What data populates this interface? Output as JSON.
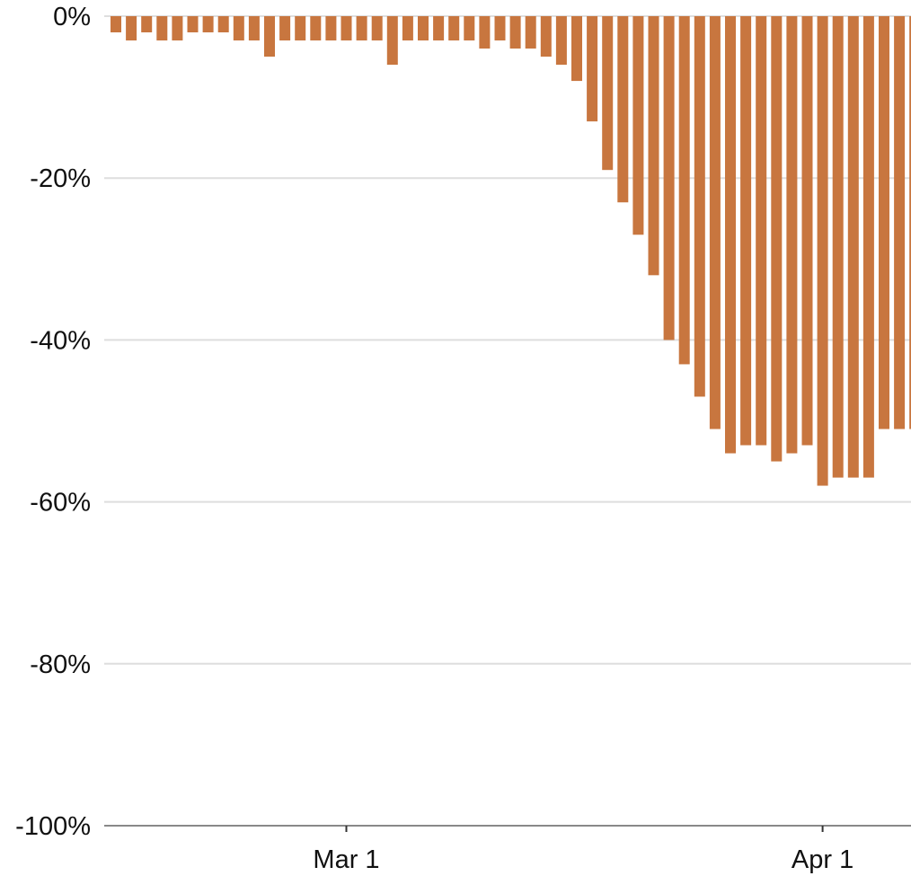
{
  "chart_data": {
    "type": "bar",
    "title": "",
    "xlabel": "",
    "ylabel": "",
    "ylim": [
      -100,
      0
    ],
    "grid": true,
    "legend": "none",
    "bar_color": "#c8763f",
    "grid_color": "#dedede",
    "axis_color": "#888888",
    "x_start": "2020-02-15",
    "categories": [
      "2020-02-15",
      "2020-02-16",
      "2020-02-17",
      "2020-02-18",
      "2020-02-19",
      "2020-02-20",
      "2020-02-21",
      "2020-02-22",
      "2020-02-23",
      "2020-02-24",
      "2020-02-25",
      "2020-02-26",
      "2020-02-27",
      "2020-02-28",
      "2020-02-29",
      "2020-03-01",
      "2020-03-02",
      "2020-03-03",
      "2020-03-04",
      "2020-03-05",
      "2020-03-06",
      "2020-03-07",
      "2020-03-08",
      "2020-03-09",
      "2020-03-10",
      "2020-03-11",
      "2020-03-12",
      "2020-03-13",
      "2020-03-14",
      "2020-03-15",
      "2020-03-16",
      "2020-03-17",
      "2020-03-18",
      "2020-03-19",
      "2020-03-20",
      "2020-03-21",
      "2020-03-22",
      "2020-03-23",
      "2020-03-24",
      "2020-03-25",
      "2020-03-26",
      "2020-03-27",
      "2020-03-28",
      "2020-03-29",
      "2020-03-30",
      "2020-03-31",
      "2020-04-01",
      "2020-04-02",
      "2020-04-03",
      "2020-04-04",
      "2020-04-05",
      "2020-04-06",
      "2020-04-07"
    ],
    "values": [
      -2,
      -3,
      -2,
      -3,
      -3,
      -2,
      -2,
      -2,
      -3,
      -3,
      -5,
      -3,
      -3,
      -3,
      -3,
      -3,
      -3,
      -3,
      -6,
      -3,
      -3,
      -3,
      -3,
      -3,
      -4,
      -3,
      -4,
      -4,
      -5,
      -6,
      -8,
      -13,
      -19,
      -23,
      -27,
      -32,
      -40,
      -43,
      -47,
      -51,
      -54,
      -53,
      -53,
      -55,
      -54,
      -53,
      -58,
      -57,
      -57,
      -57,
      -51,
      -51,
      -51
    ],
    "y_ticks": [
      {
        "value": 0,
        "label": "0%"
      },
      {
        "value": -20,
        "label": "-20%"
      },
      {
        "value": -40,
        "label": "-40%"
      },
      {
        "value": -60,
        "label": "-60%"
      },
      {
        "value": -80,
        "label": "-80%"
      },
      {
        "value": -100,
        "label": "-100%"
      }
    ],
    "x_ticks": [
      {
        "date": "2020-03-01",
        "label": "Mar 1"
      },
      {
        "date": "2020-04-01",
        "label": "Apr 1"
      }
    ]
  }
}
